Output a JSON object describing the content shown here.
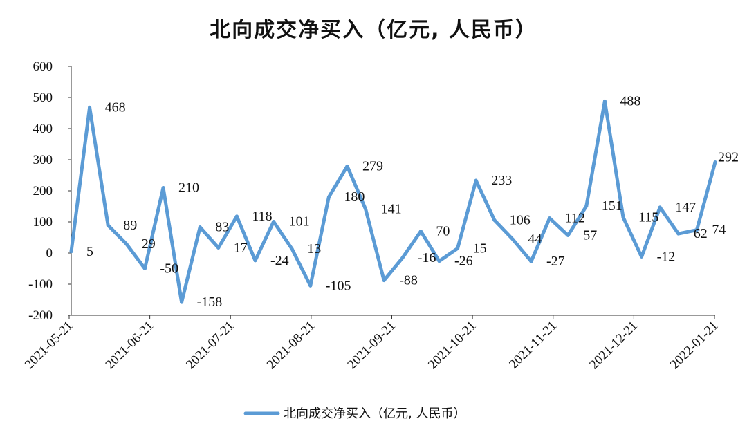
{
  "chart_data": {
    "type": "line",
    "title": "北向成交净买入（亿元, 人民币）",
    "ylim": [
      -200,
      600
    ],
    "yticks": [
      -200,
      -100,
      0,
      100,
      200,
      300,
      400,
      500,
      600
    ],
    "x_tick_labels": [
      "2021-05-21",
      "2021-06-21",
      "2021-07-21",
      "2021-08-21",
      "2021-09-21",
      "2021-10-21",
      "2021-11-21",
      "2021-12-21",
      "2022-01-21"
    ],
    "legend": "bottom-center",
    "series": [
      {
        "name": "北向成交净买入（亿元, 人民币）",
        "color": "#5b9bd5",
        "values": [
          5,
          468,
          89,
          29,
          -50,
          210,
          -158,
          83,
          17,
          118,
          -24,
          101,
          13,
          -105,
          180,
          279,
          141,
          -88,
          -16,
          70,
          -26,
          15,
          233,
          106,
          44,
          -27,
          112,
          57,
          151,
          488,
          115,
          -12,
          147,
          62,
          74,
          292
        ]
      }
    ]
  }
}
